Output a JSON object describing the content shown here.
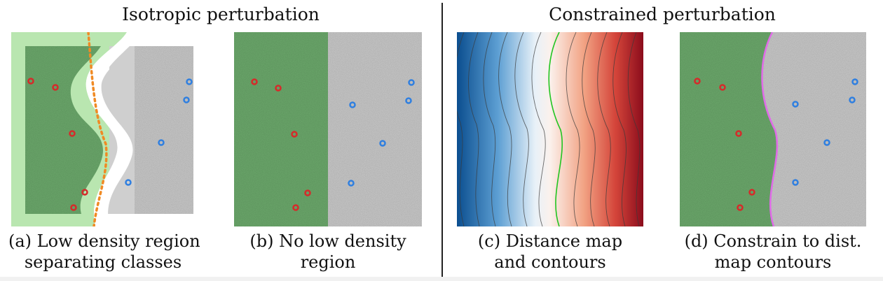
{
  "groups": {
    "left": {
      "title": "Isotropic perturbation"
    },
    "right": {
      "title": "Constrained perturbation"
    }
  },
  "panels": [
    {
      "id": "a",
      "caption_line1": "(a) Low density region",
      "caption_line2": "separating classes"
    },
    {
      "id": "b",
      "caption_line1": "(b) No low density",
      "caption_line2": "region"
    },
    {
      "id": "c",
      "caption_line1": "(c) Distance map",
      "caption_line2": "and contours"
    },
    {
      "id": "d",
      "caption_line1": "(d) Constrain to dist.",
      "caption_line2": "map contours"
    }
  ],
  "colors": {
    "class_a_region": "#6fae6f",
    "class_b_region": "#cfcfcf",
    "low_density": "#b9e6b0",
    "class_a_point": "#d62a2a",
    "class_b_point": "#2f7fe0",
    "boundary_dotted": "#f08a24",
    "contour_highlight": "#21c521",
    "constrained_boundary": "#e06be8",
    "distance_neg": "#0b4e8f",
    "distance_pos": "#8b0c1c"
  }
}
